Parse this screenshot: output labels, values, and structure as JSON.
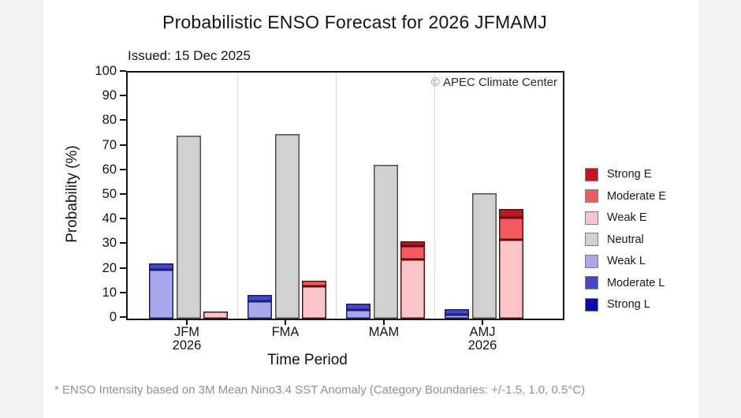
{
  "page": {
    "background": "#f0f1f1",
    "figure_background": "#ffffff"
  },
  "header": {
    "title": "Probabilistic ENSO Forecast for 2026 JFMAMJ",
    "issued": "Issued: 15 Dec 2025",
    "watermark_symbol": "©",
    "watermark_text": "APEC Climate Center"
  },
  "axes": {
    "y_label": "Probability (%)",
    "x_label": "Time Period",
    "y_ticks": [
      0,
      10,
      20,
      30,
      40,
      50,
      60,
      70,
      80,
      90,
      100
    ],
    "x_tick_labels": [
      [
        "JFM",
        "2026"
      ],
      [
        "FMA"
      ],
      [
        "MAM"
      ],
      [
        "AMJ",
        "2026"
      ]
    ]
  },
  "legend": {
    "position": "right",
    "items": [
      {
        "label": "Strong E",
        "color": "#c4161d"
      },
      {
        "label": "Moderate E",
        "color": "#f25a5e"
      },
      {
        "label": "Weak E",
        "color": "#fbc4c6"
      },
      {
        "label": "Neutral",
        "color": "#d1d1d1"
      },
      {
        "label": "Weak L",
        "color": "#a6a8ec"
      },
      {
        "label": "Moderate L",
        "color": "#4645d2"
      },
      {
        "label": "Strong L",
        "color": "#0b0bb0"
      }
    ]
  },
  "footnote": "* ENSO Intensity based on 3M Mean Nino3.4 SST Anomaly (Category Boundaries: +/-1.5, 1.0, 0.5°C)",
  "chart_data": {
    "type": "bar",
    "stacked": true,
    "title": "Probabilistic ENSO Forecast for 2026 JFMAMJ",
    "subtitle": "Issued: 15 Dec 2025",
    "xlabel": "Time Period",
    "ylabel": "Probability (%)",
    "ylim": [
      0,
      100
    ],
    "grid": "vertical-category-separators",
    "legend_position": "right",
    "categories": [
      "JFM 2026",
      "FMA",
      "MAM",
      "AMJ 2026"
    ],
    "stacks": [
      {
        "id": "la_nina",
        "edge": "#1d1d6e"
      },
      {
        "id": "neutral",
        "edge": "#4f4f4f"
      },
      {
        "id": "el_nino",
        "edge": "#5c1014"
      }
    ],
    "series": [
      {
        "name": "Weak L",
        "stack": "la_nina",
        "color": "#a6a8ec",
        "values": [
          20,
          7,
          3.5,
          1.5
        ]
      },
      {
        "name": "Moderate L",
        "stack": "la_nina",
        "color": "#4645d2",
        "values": [
          2.5,
          2.5,
          2.5,
          2.5
        ]
      },
      {
        "name": "Strong L",
        "stack": "la_nina",
        "color": "#0b0bb0",
        "values": [
          0,
          0,
          0,
          0
        ]
      },
      {
        "name": "Neutral",
        "stack": "neutral",
        "color": "#d1d1d1",
        "values": [
          74.5,
          75,
          62.5,
          51
        ]
      },
      {
        "name": "Weak E",
        "stack": "el_nino",
        "color": "#fbc4c6",
        "values": [
          3,
          13,
          24,
          32
        ]
      },
      {
        "name": "Moderate E",
        "stack": "el_nino",
        "color": "#f25a5e",
        "values": [
          0,
          2.5,
          5.5,
          9
        ]
      },
      {
        "name": "Strong E",
        "stack": "el_nino",
        "color": "#c4161d",
        "values": [
          0,
          0,
          2,
          3.5
        ]
      }
    ],
    "bar_totals": {
      "la_nina": [
        22.5,
        9.5,
        6,
        4
      ],
      "neutral": [
        74.5,
        75,
        62.5,
        51
      ],
      "el_nino": [
        3,
        15.5,
        31.5,
        44.5
      ]
    }
  }
}
